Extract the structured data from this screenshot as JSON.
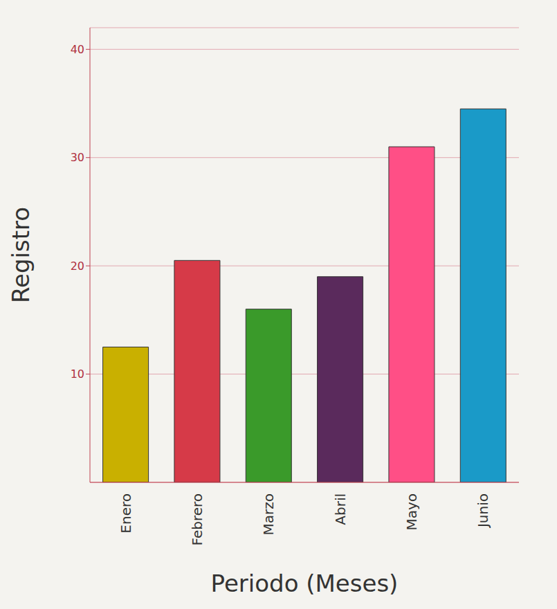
{
  "chart_data": {
    "type": "bar",
    "x_label": "Periodo (Meses)",
    "y_label": "Registro",
    "categories": [
      "Enero",
      "Febrero",
      "Marzo",
      "Abril",
      "Mayo",
      "Junio"
    ],
    "values": [
      12.5,
      20.5,
      16,
      19,
      31,
      34.5
    ],
    "colors": [
      "#c9b000",
      "#d63a48",
      "#3a9a2a",
      "#5a2a5c",
      "#ff4f86",
      "#1a9ac8"
    ],
    "ylim": [
      0,
      42
    ],
    "yticks": [
      10,
      20,
      30,
      40
    ],
    "grid": true
  }
}
